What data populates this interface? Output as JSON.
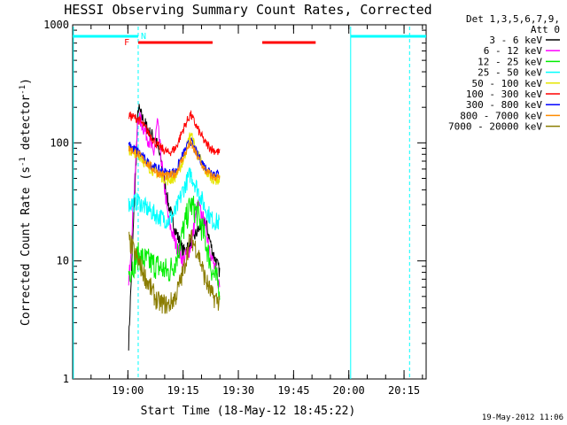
{
  "chart_data": {
    "type": "line",
    "title": "HESSI Observing Summary Count Rates, Corrected",
    "xlabel": "Start Time (18-May-12 18:45:22)",
    "ylabel_main": "Corrected Count Rate (s",
    "ylabel_exp1": "-1",
    "ylabel_mid": " detector",
    "ylabel_exp2": "-1",
    "ylabel_end": ")",
    "yscale": "log",
    "ylim": [
      1,
      1000
    ],
    "x_units": "minutes after 18:45:22",
    "xlim": [
      0,
      42
    ],
    "xticks": [
      {
        "label": "19:00",
        "value": 15
      },
      {
        "label": "19:15",
        "value": 30
      },
      {
        "label": "19:30",
        "value": 45
      },
      {
        "label": "19:45",
        "value": 60
      },
      {
        "label": "20:00",
        "value": 75
      },
      {
        "label": "20:15",
        "value": 90
      }
    ],
    "yticks": [
      {
        "label": "1",
        "value": 1
      },
      {
        "label": "10",
        "value": 10
      },
      {
        "label": "100",
        "value": 100
      },
      {
        "label": "1000",
        "value": 1000
      }
    ],
    "legend_header": [
      "Det 1,3,5,6,7,9,",
      "Att 0"
    ],
    "legend_position": "right",
    "footer_date": "19-May-2012 11:06",
    "flag_labels": {
      "F": "F",
      "N": "N"
    },
    "series": [
      {
        "name": "3 - 6 keV",
        "color": "#000000",
        "x": [
          15.2,
          17.8,
          19.0,
          21.0,
          22.5,
          24.0,
          26.0,
          28.0,
          30.0,
          32.0,
          34.0,
          36.0,
          38.0,
          40.0
        ],
        "y": [
          2.0,
          200,
          160,
          120,
          110,
          70,
          30,
          18,
          12,
          14,
          18,
          22,
          12,
          8
        ]
      },
      {
        "name": "6 - 12 keV",
        "color": "#ff00ff",
        "x": [
          15.2,
          17.8,
          20.0,
          22.0,
          23.0,
          24.5,
          26.0,
          28.0,
          30.0,
          32.0,
          34.0,
          36.0,
          38.0,
          40.0
        ],
        "y": [
          6.0,
          170,
          120,
          80,
          150,
          55,
          22,
          14,
          10,
          13,
          30,
          20,
          10,
          6
        ]
      },
      {
        "name": "12 - 25 keV",
        "color": "#00ee00",
        "x": [
          15.2,
          17.8,
          20.0,
          23.0,
          26.0,
          28.0,
          30.0,
          32.0,
          34.0,
          36.0,
          38.0,
          40.0
        ],
        "y": [
          8.0,
          11,
          10,
          9,
          8,
          10,
          18,
          30,
          25,
          15,
          8,
          6
        ]
      },
      {
        "name": "25 - 50 keV",
        "color": "#00ffff",
        "x": [
          15.2,
          17.8,
          20.0,
          23.0,
          26.0,
          28.0,
          30.0,
          32.0,
          34.0,
          36.0,
          38.0,
          40.0
        ],
        "y": [
          30.0,
          32,
          28,
          24,
          22,
          26,
          40,
          55,
          40,
          28,
          22,
          21
        ]
      },
      {
        "name": "50 - 100 keV",
        "color": "#e6e600",
        "x": [
          15.2,
          17.8,
          20.0,
          23.0,
          26.0,
          28.0,
          30.0,
          32.0,
          34.0,
          36.0,
          38.0,
          40.0
        ],
        "y": [
          85,
          82,
          65,
          55,
          48,
          52,
          70,
          120,
          80,
          58,
          50,
          48
        ]
      },
      {
        "name": "100 - 300 keV",
        "color": "#ff0000",
        "x": [
          15.2,
          17.8,
          20.0,
          23.0,
          26.0,
          28.0,
          30.0,
          32.0,
          34.0,
          36.0,
          38.0,
          40.0
        ],
        "y": [
          170,
          160,
          130,
          95,
          82,
          90,
          130,
          175,
          130,
          100,
          88,
          82
        ]
      },
      {
        "name": "300 - 800 keV",
        "color": "#0000ff",
        "x": [
          15.2,
          17.8,
          20.0,
          23.0,
          26.0,
          28.0,
          30.0,
          32.0,
          34.0,
          36.0,
          38.0,
          40.0
        ],
        "y": [
          95,
          85,
          70,
          60,
          55,
          58,
          80,
          105,
          78,
          62,
          56,
          54
        ]
      },
      {
        "name": "800 - 7000 keV",
        "color": "#ff8c00",
        "x": [
          15.2,
          17.8,
          20.0,
          23.0,
          26.0,
          28.0,
          30.0,
          32.0,
          34.0,
          36.0,
          38.0,
          40.0
        ],
        "y": [
          90,
          80,
          68,
          56,
          52,
          55,
          75,
          100,
          75,
          58,
          52,
          50
        ]
      },
      {
        "name": "7000 - 20000 keV",
        "color": "#8b7d00",
        "x": [
          15.2,
          17.8,
          20.0,
          23.0,
          26.0,
          28.0,
          30.0,
          32.0,
          34.0,
          36.0,
          38.0,
          40.0
        ],
        "y": [
          15,
          10,
          7,
          4.5,
          4.2,
          5.0,
          8,
          16,
          12,
          7,
          5,
          4.5
        ]
      }
    ]
  }
}
